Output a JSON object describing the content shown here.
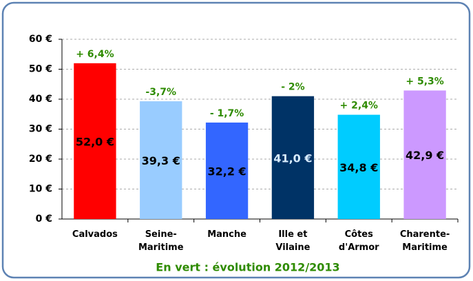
{
  "chart_data": {
    "type": "bar",
    "categories": [
      "Calvados",
      "Seine-\nMaritime",
      "Manche",
      "Ille et\nVilaine",
      "Côtes\nd'Armor",
      "Charente-\nMaritime"
    ],
    "values": [
      52.0,
      39.3,
      32.2,
      41.0,
      34.8,
      42.9
    ],
    "value_labels": [
      "52,0 €",
      "39,3 €",
      "32,2 €",
      "41,0 €",
      "34,8 €",
      "42,9 €"
    ],
    "value_label_colors": [
      "#000000",
      "#000000",
      "#000000",
      "#d8ecff",
      "#000000",
      "#000000"
    ],
    "colors": [
      "#ff0000",
      "#99ccff",
      "#3366ff",
      "#003366",
      "#00ccff",
      "#cc99ff"
    ],
    "annotations": [
      "+ 6,4%",
      "-3,7%",
      "- 1,7%",
      "- 2%",
      "+ 2,4%",
      "+ 5,3%"
    ],
    "annotation_color": "#2e8b00",
    "caption": "En vert : évolution 2012/2013",
    "ylim": [
      0,
      60
    ],
    "yticks": [
      {
        "value": 0,
        "label": "0 €"
      },
      {
        "value": 10,
        "label": "10 €"
      },
      {
        "value": 20,
        "label": "20 €"
      },
      {
        "value": 30,
        "label": "30 €"
      },
      {
        "value": 40,
        "label": "40 €"
      },
      {
        "value": 50,
        "label": "50 €"
      },
      {
        "value": 60,
        "label": "60 €"
      }
    ],
    "grid": true
  }
}
